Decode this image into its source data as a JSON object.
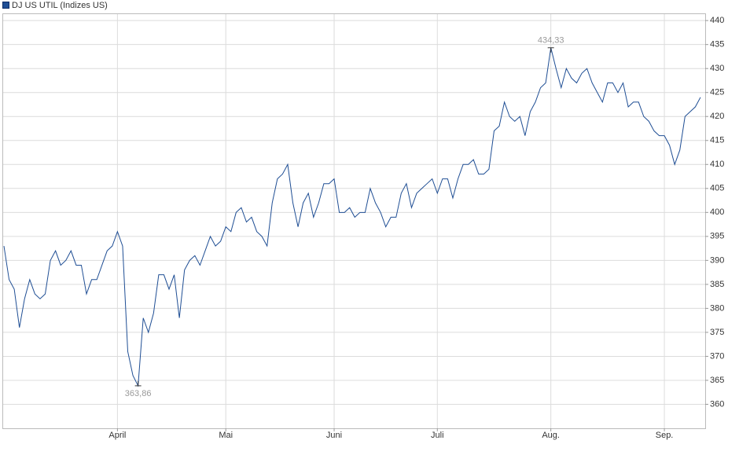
{
  "chart_data": {
    "type": "line",
    "categories": [
      null,
      null,
      null,
      null,
      null,
      null,
      null,
      null,
      null,
      null,
      null,
      null,
      null,
      null,
      null,
      null,
      null,
      null,
      null,
      null,
      null,
      null,
      "April",
      null,
      null,
      null,
      null,
      null,
      null,
      null,
      null,
      null,
      null,
      null,
      null,
      null,
      null,
      null,
      null,
      null,
      null,
      null,
      null,
      "Mai",
      null,
      null,
      null,
      null,
      null,
      null,
      null,
      null,
      null,
      null,
      null,
      null,
      null,
      null,
      null,
      null,
      null,
      null,
      null,
      null,
      "Juni",
      null,
      null,
      null,
      null,
      null,
      null,
      null,
      null,
      null,
      null,
      null,
      null,
      null,
      null,
      null,
      null,
      null,
      null,
      null,
      "Juli",
      null,
      null,
      null,
      null,
      null,
      null,
      null,
      null,
      null,
      null,
      null,
      null,
      null,
      null,
      null,
      null,
      null,
      null,
      null,
      null,
      null,
      "Aug.",
      null,
      null,
      null,
      null,
      null,
      null,
      null,
      null,
      null,
      null,
      null,
      null,
      null,
      null,
      null,
      null,
      null,
      null,
      null,
      null,
      null,
      "Sep.",
      null,
      null,
      null,
      null,
      null,
      null,
      null
    ],
    "series": [
      {
        "name": "DJ US UTIL (Indizes US)",
        "color": "#1f4e94",
        "values": [
          393,
          386,
          384,
          376,
          382,
          386,
          383,
          382,
          383,
          390,
          392,
          389,
          390,
          392,
          389,
          389,
          383,
          386,
          386,
          389,
          392,
          393,
          396,
          393,
          371,
          366,
          363.86,
          378,
          375,
          379,
          387,
          387,
          384,
          387,
          378,
          388,
          390,
          391,
          389,
          392,
          395,
          393,
          394,
          397,
          396,
          400,
          401,
          398,
          399,
          396,
          395,
          393,
          402,
          407,
          408,
          410,
          402,
          397,
          402,
          404,
          399,
          402,
          406,
          406,
          407,
          400,
          400,
          401,
          399,
          400,
          400,
          405,
          402,
          400,
          397,
          399,
          399,
          404,
          406,
          401,
          404,
          405,
          406,
          407,
          404,
          407,
          407,
          403,
          407,
          410,
          410,
          411,
          408,
          408,
          409,
          417,
          418,
          423,
          420,
          419,
          420,
          416,
          421,
          423,
          426,
          427,
          434.33,
          430,
          426,
          430,
          428,
          427,
          429,
          430,
          427,
          425,
          423,
          427,
          427,
          425,
          427,
          422,
          423,
          423,
          420,
          419,
          417,
          416,
          416,
          414,
          410,
          413,
          420,
          421,
          422,
          424
        ],
        "value_labels": [
          null,
          null,
          null,
          null,
          null,
          null,
          null,
          null,
          null,
          null,
          null,
          null,
          null,
          null,
          null,
          null,
          null,
          null,
          null,
          null,
          null,
          null,
          null,
          null,
          null,
          null,
          "363,86",
          null,
          null,
          null,
          null,
          null,
          null,
          null,
          null,
          null,
          null,
          null,
          null,
          null,
          null,
          null,
          null,
          null,
          null,
          null,
          null,
          null,
          null,
          null,
          null,
          null,
          null,
          null,
          null,
          null,
          null,
          null,
          null,
          null,
          null,
          null,
          null,
          null,
          null,
          null,
          null,
          null,
          null,
          null,
          null,
          null,
          null,
          null,
          null,
          null,
          null,
          null,
          null,
          null,
          null,
          null,
          null,
          null,
          null,
          null,
          null,
          null,
          null,
          null,
          null,
          null,
          null,
          null,
          null,
          null,
          null,
          null,
          null,
          null,
          null,
          null,
          null,
          null,
          null,
          null,
          "434,33",
          null,
          null,
          null,
          null,
          null,
          null,
          null,
          null,
          null,
          null,
          null,
          null,
          null,
          null,
          null,
          null,
          null,
          null,
          null,
          null,
          null,
          null,
          null,
          null,
          null,
          null,
          null,
          null,
          null
        ]
      }
    ],
    "ylim": [
      355,
      441.5
    ],
    "yticks": [
      360,
      365,
      370,
      375,
      380,
      385,
      390,
      395,
      400,
      405,
      410,
      415,
      420,
      425,
      430,
      435,
      440
    ],
    "grid": true
  }
}
